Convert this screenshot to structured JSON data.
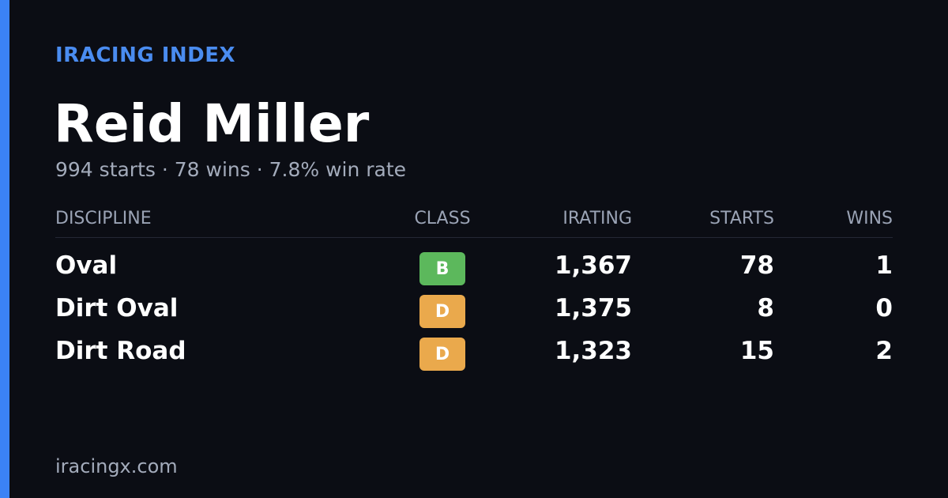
{
  "brand": "IRACING INDEX",
  "name": "Reid Miller",
  "summary": "994 starts · 78 wins · 7.8% win rate",
  "table": {
    "headers": [
      "DISCIPLINE",
      "CLASS",
      "IRATING",
      "STARTS",
      "WINS"
    ],
    "rows": [
      {
        "discipline": "Oval",
        "class": "B",
        "class_color": "#5cb85c",
        "irating": "1,367",
        "starts": "78",
        "wins": "1"
      },
      {
        "discipline": "Dirt Oval",
        "class": "D",
        "class_color": "#eaa94c",
        "irating": "1,375",
        "starts": "8",
        "wins": "0"
      },
      {
        "discipline": "Dirt Road",
        "class": "D",
        "class_color": "#eaa94c",
        "irating": "1,323",
        "starts": "15",
        "wins": "2"
      }
    ]
  },
  "footer": "iracingx.com"
}
